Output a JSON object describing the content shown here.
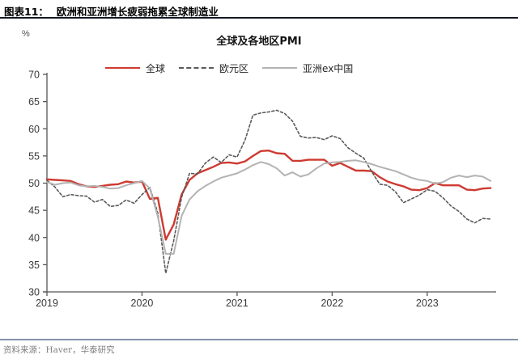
{
  "header": {
    "label": "图表11：",
    "title": "欧洲和亚洲增长疲弱拖累全球制造业"
  },
  "footer": {
    "source": "资料来源：Haver，华泰研究"
  },
  "chart_data": {
    "type": "line",
    "title": "全球及各地区PMI",
    "unit": "%",
    "x_start": "2019-01",
    "x_end": "2023-09",
    "x_frequency": "monthly",
    "ylim": [
      30,
      70
    ],
    "yticks": [
      30,
      35,
      40,
      45,
      50,
      55,
      60,
      65,
      70
    ],
    "xticks": [
      {
        "pos": 0,
        "label": "2019"
      },
      {
        "pos": 12,
        "label": "2020"
      },
      {
        "pos": 24,
        "label": "2021"
      },
      {
        "pos": 36,
        "label": "2022"
      },
      {
        "pos": 48,
        "label": "2023"
      }
    ],
    "x_axis_months": 56.7,
    "grid": false,
    "legend_position": "top",
    "axis_color": "#555555",
    "series": [
      {
        "name": "全球",
        "color": "#ce3a31",
        "style": "solid",
        "width": 2.4,
        "values": [
          50.7,
          50.6,
          50.5,
          50.4,
          49.8,
          49.4,
          49.3,
          49.5,
          49.7,
          49.8,
          50.3,
          50.1,
          50.3,
          47.1,
          47.3,
          39.6,
          42.4,
          47.9,
          50.6,
          51.8,
          52.4,
          53.0,
          53.7,
          53.8,
          53.6,
          54.0,
          55.0,
          55.9,
          56.0,
          55.5,
          55.4,
          54.1,
          54.1,
          54.3,
          54.3,
          54.3,
          53.2,
          53.7,
          53.0,
          52.3,
          52.3,
          52.2,
          51.1,
          50.3,
          49.8,
          49.4,
          48.8,
          48.7,
          49.1,
          50.0,
          49.6,
          49.6,
          49.6,
          48.8,
          48.7,
          49.0,
          49.1
        ]
      },
      {
        "name": "欧元区",
        "color": "#595959",
        "style": "dashed",
        "width": 1.6,
        "values": [
          50.5,
          49.3,
          47.5,
          47.9,
          47.7,
          47.6,
          46.5,
          47.0,
          45.7,
          45.9,
          46.9,
          46.3,
          47.9,
          49.2,
          44.5,
          33.4,
          39.4,
          47.4,
          51.8,
          51.7,
          53.7,
          54.8,
          53.8,
          55.2,
          54.8,
          57.9,
          62.5,
          62.9,
          63.1,
          63.4,
          62.8,
          61.4,
          58.6,
          58.3,
          58.4,
          58.0,
          58.7,
          58.2,
          56.5,
          55.5,
          54.6,
          52.1,
          49.8,
          49.6,
          48.4,
          46.4,
          47.1,
          47.8,
          48.8,
          48.5,
          47.3,
          45.8,
          44.8,
          43.4,
          42.7,
          43.5,
          43.4
        ]
      },
      {
        "name": "亚洲ex中国",
        "color": "#b3b3b3",
        "style": "solid",
        "width": 2.0,
        "values": [
          50.2,
          49.7,
          50.0,
          50.1,
          49.6,
          49.4,
          49.5,
          49.3,
          49.0,
          49.1,
          49.6,
          50.0,
          50.4,
          49.0,
          43.8,
          37.0,
          37.0,
          44.0,
          47.0,
          48.5,
          49.5,
          50.3,
          51.0,
          51.4,
          51.8,
          52.5,
          53.3,
          53.9,
          53.5,
          52.7,
          51.4,
          52.0,
          51.2,
          51.6,
          52.7,
          53.6,
          53.8,
          53.9,
          54.1,
          54.2,
          53.9,
          53.5,
          53.0,
          52.6,
          52.2,
          51.6,
          51.0,
          50.6,
          50.4,
          49.9,
          50.2,
          51.0,
          51.4,
          51.1,
          51.4,
          51.2,
          50.4
        ]
      }
    ]
  }
}
